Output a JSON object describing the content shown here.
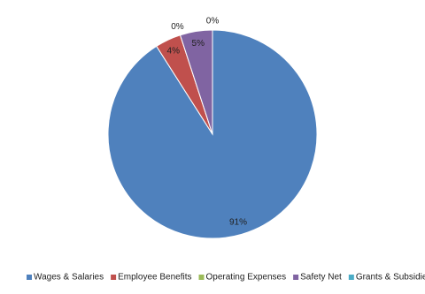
{
  "chart_data": {
    "type": "pie",
    "categories": [
      "Wages & Salaries",
      "Employee Benefits",
      "Operating Expenses",
      "Safety Net",
      "Grants & Subsidies"
    ],
    "values": [
      91,
      4,
      0,
      5,
      0
    ],
    "value_labels": [
      "91%",
      "4%",
      "0%",
      "5%",
      "0%"
    ],
    "colors": [
      "#4f81bd",
      "#c0504d",
      "#9bbb59",
      "#8064a2",
      "#4bacc6"
    ],
    "legend": "bottom"
  }
}
